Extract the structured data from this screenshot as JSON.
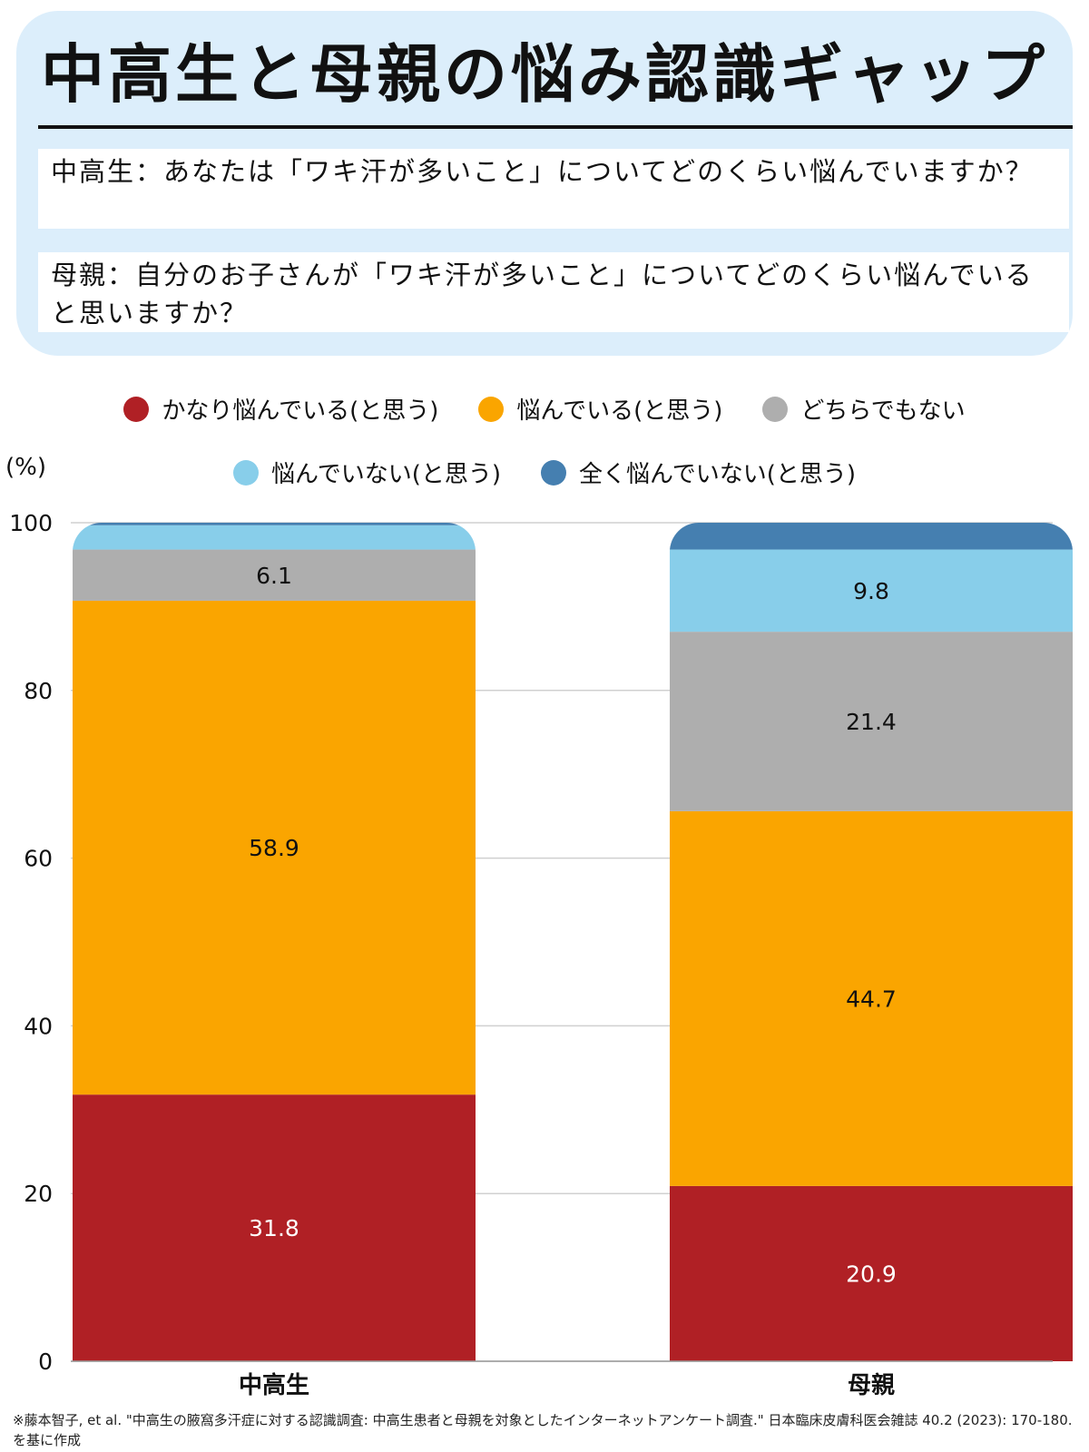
{
  "header": {
    "title": "中高生と母親の悩み認識ギャップ",
    "question_students": "中高生：あなたは「ワキ汗が多いこと」についてどのくらい悩んでいますか？",
    "question_mothers": "母親：自分のお子さんが「ワキ汗が多いこと」についてどのくらい悩んでいると思いますか？"
  },
  "legend": [
    {
      "label": "かなり悩んでいる(と思う)",
      "color": "#b02025"
    },
    {
      "label": "悩んでいる(と思う)",
      "color": "#faa500"
    },
    {
      "label": "どちらでもない",
      "color": "#aeaeae"
    },
    {
      "label": "悩んでいない(と思う)",
      "color": "#88ceea"
    },
    {
      "label": "全く悩んでいない(と思う)",
      "color": "#457fb0"
    }
  ],
  "chart_data": {
    "type": "bar",
    "stacked": true,
    "ylabel": "(%)",
    "ylim": [
      0,
      100
    ],
    "yticks": [
      0,
      20,
      40,
      60,
      80,
      100
    ],
    "grid": true,
    "legend_position": "top",
    "categories": [
      "中高生",
      "母親"
    ],
    "series": [
      {
        "name": "かなり悩んでいる(と思う)",
        "color": "#b02025",
        "label_color": "#ffffff",
        "values": [
          31.8,
          20.9
        ]
      },
      {
        "name": "悩んでいる(と思う)",
        "color": "#faa500",
        "label_color": "#111111",
        "values": [
          58.9,
          44.7
        ]
      },
      {
        "name": "どちらでもない",
        "color": "#aeaeae",
        "label_color": "#111111",
        "values": [
          6.1,
          21.4
        ]
      },
      {
        "name": "悩んでいない(と思う)",
        "color": "#88ceea",
        "label_color": "#111111",
        "values": [
          2.9,
          9.8
        ]
      },
      {
        "name": "全く悩んでいない(と思う)",
        "color": "#457fb0",
        "label_color": "#ffffff",
        "values": [
          0.3,
          3.2
        ]
      }
    ],
    "data_labels": [
      [
        "31.8",
        "20.9"
      ],
      [
        "58.9",
        "44.7"
      ],
      [
        "6.1",
        "21.4"
      ],
      [
        "",
        "9.8"
      ],
      [
        "",
        ""
      ]
    ]
  },
  "footnote": "※藤本智子, et al. \"中高生の腋窩多汗症に対する認識調査: 中高生患者と母親を対象としたインターネットアンケート調査.\" 日本臨床皮膚科医会雑誌 40.2 (2023): 170-180.を基に作成"
}
